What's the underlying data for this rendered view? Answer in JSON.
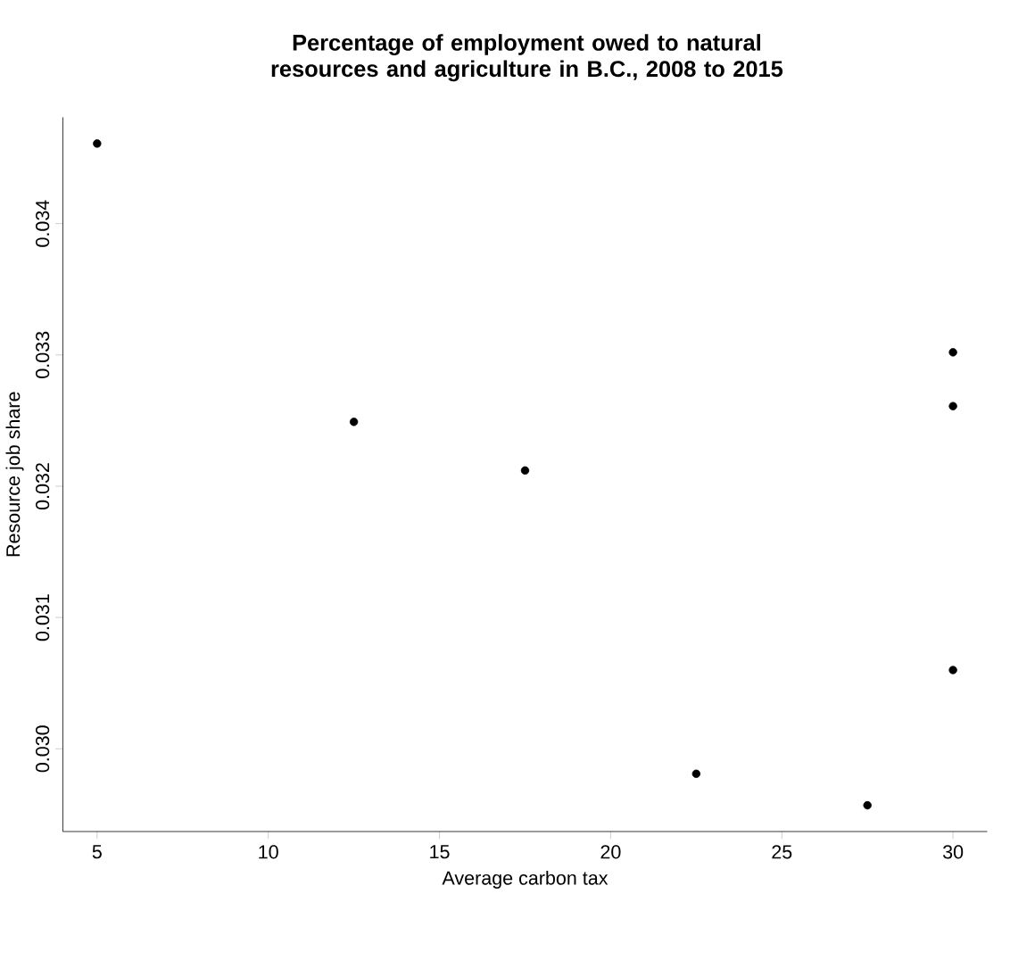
{
  "chart_data": {
    "type": "scatter",
    "title": "Percentage of employment owed to natural resources and agriculture in B.C., 2008 to 2015",
    "xlabel": "Average carbon tax",
    "ylabel": "Resource job share",
    "x": [
      5,
      12.5,
      17.5,
      22.5,
      27.5,
      30,
      30,
      30
    ],
    "values": [
      0.03461,
      0.03249,
      0.03212,
      0.02981,
      0.02957,
      0.03302,
      0.03261,
      0.0306
    ],
    "color": "#000000",
    "marker": "circle",
    "xlim": [
      4,
      31
    ],
    "ylim": [
      0.02937,
      0.03481
    ],
    "xticks": [
      5,
      10,
      15,
      20,
      25,
      30
    ],
    "yticks": [
      {
        "value": 0.03,
        "label": "0.030"
      },
      0.031,
      0.032,
      0.033,
      0.034
    ]
  }
}
